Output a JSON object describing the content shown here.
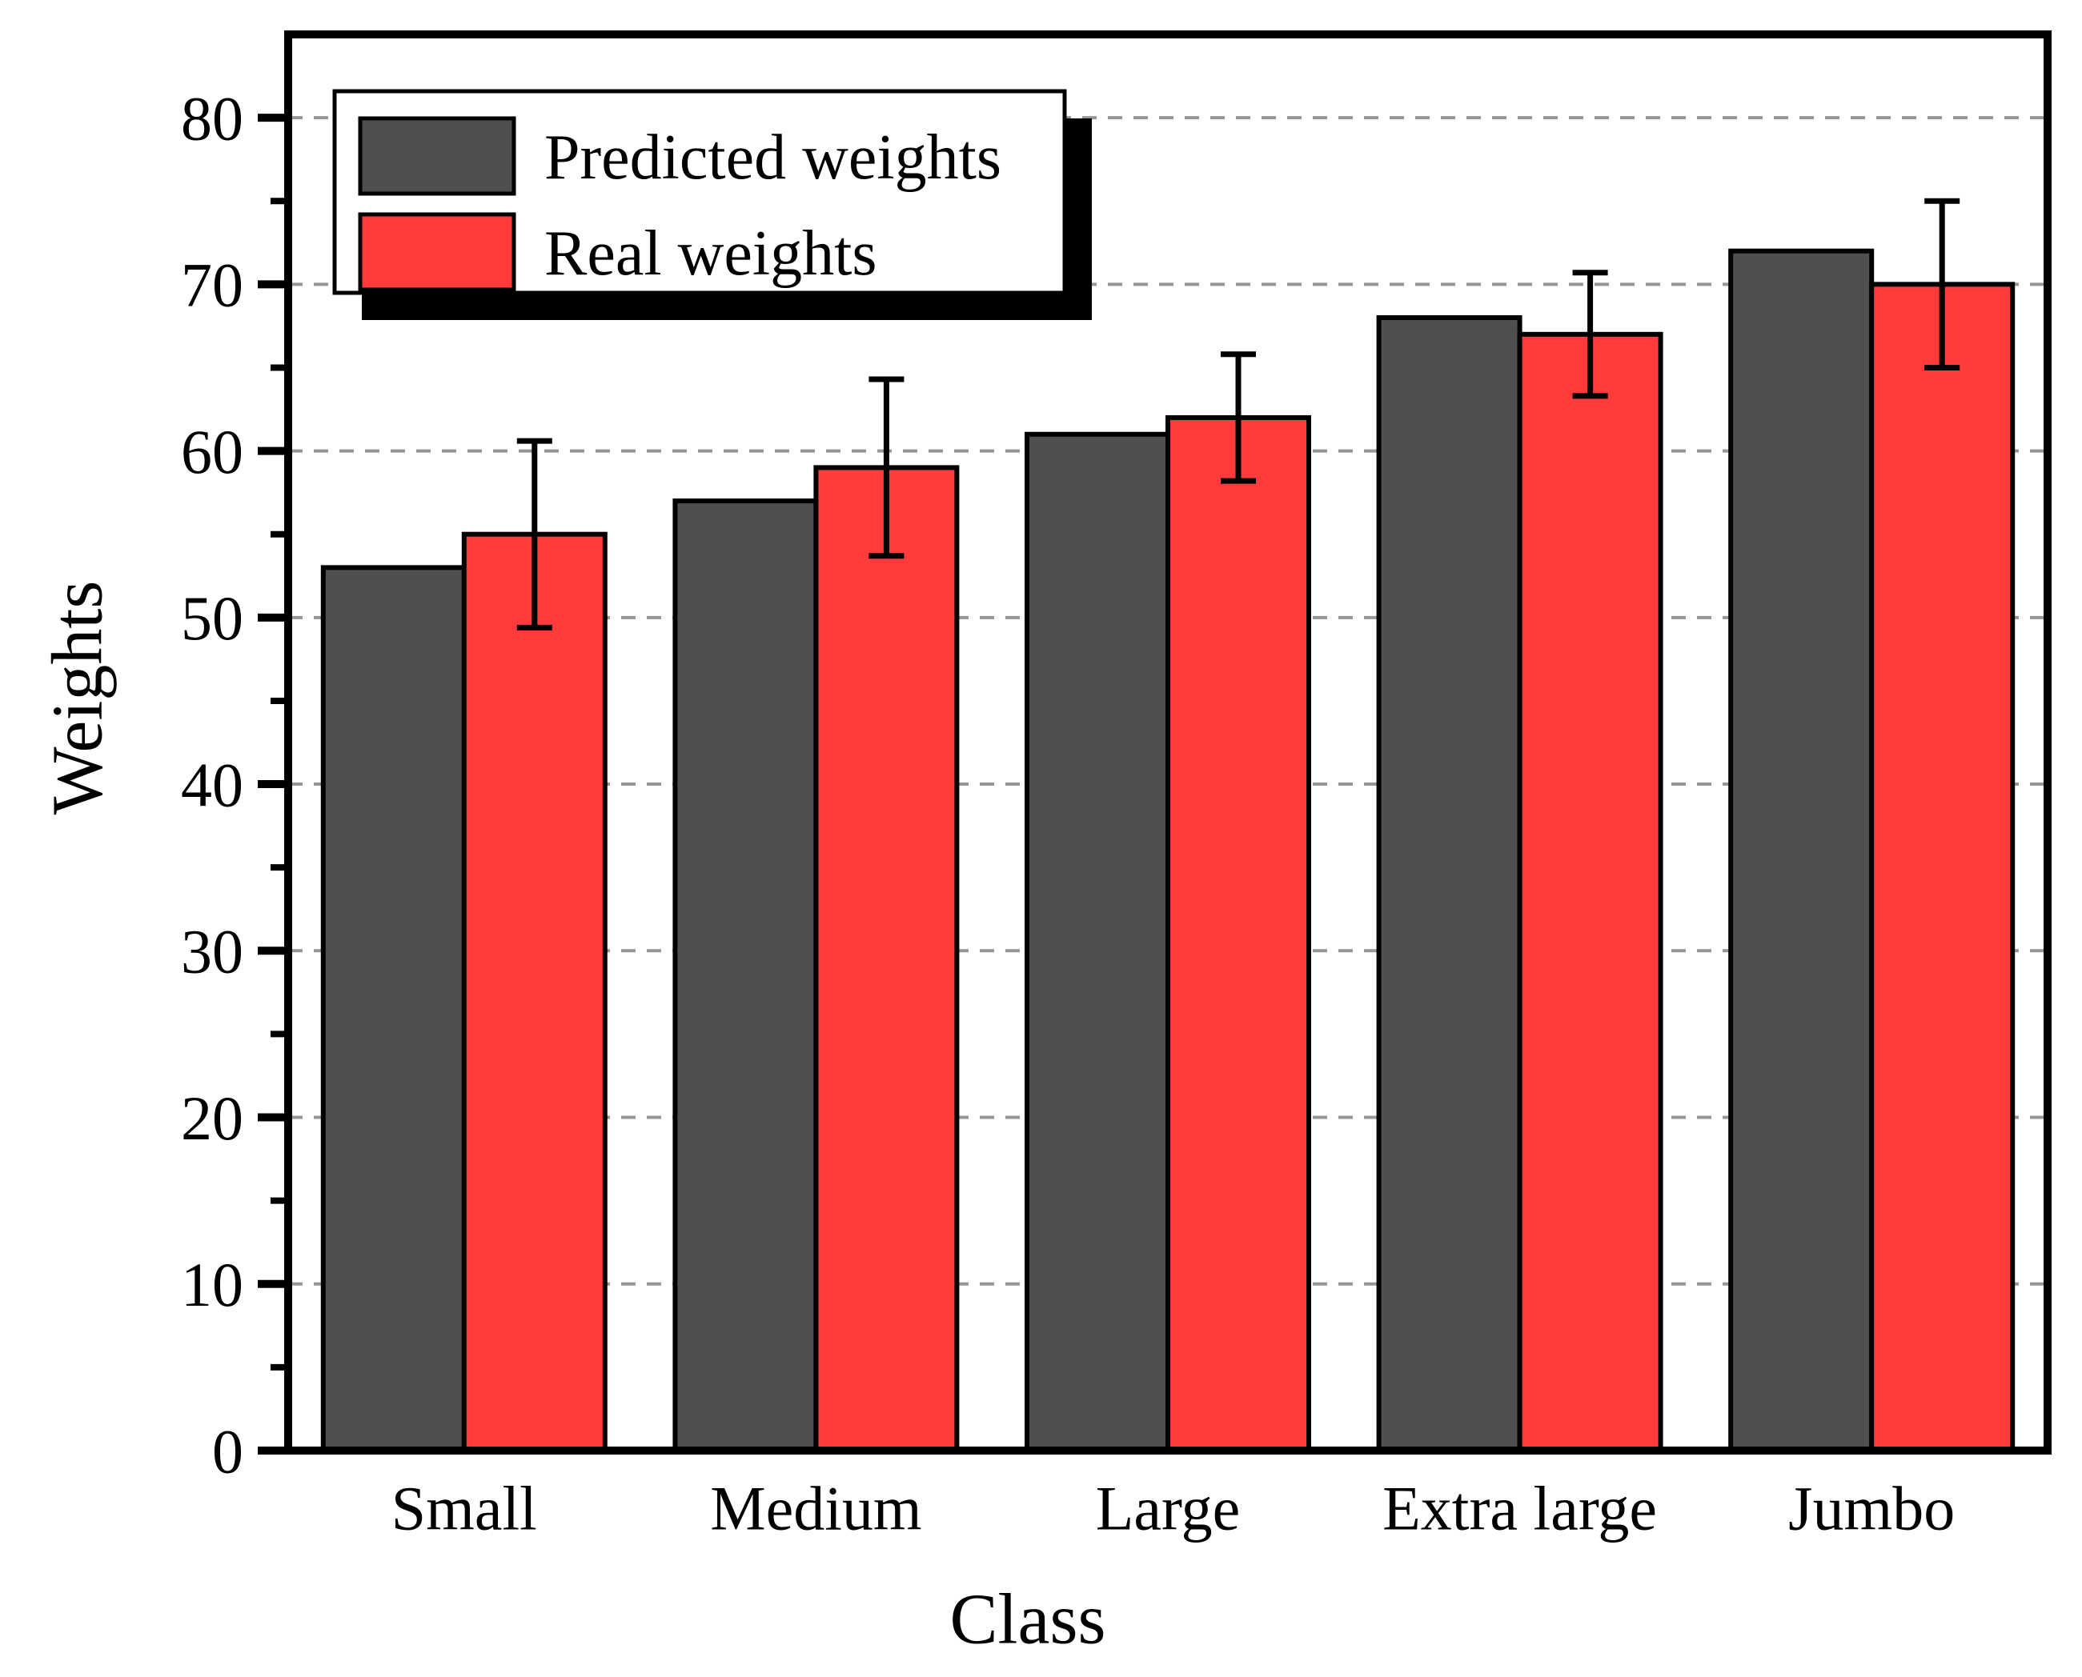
{
  "chart_data": {
    "type": "bar",
    "title": "",
    "categories": [
      "Small",
      "Medium",
      "Large",
      "Extra large",
      "Jumbo"
    ],
    "series": [
      {
        "name": "Predicted weights",
        "color": "#4F4F4F",
        "values": [
          53,
          57,
          61,
          68,
          72
        ]
      },
      {
        "name": "Real weights",
        "color": "#FF3B3B",
        "values": [
          55,
          59,
          62,
          67,
          70
        ],
        "error_bars": [
          5.6,
          5.3,
          3.8,
          3.7,
          5.0
        ]
      }
    ],
    "xlabel": "Class",
    "ylabel": "Weights",
    "ylim": [
      0,
      85
    ],
    "yticks": [
      0,
      10,
      20,
      30,
      40,
      50,
      60,
      70,
      80
    ],
    "ytick_interval": 10,
    "minor_tick_interval": 5,
    "grid": {
      "horizontal": true,
      "style": "dashed",
      "color": "#969696",
      "at": [
        10,
        20,
        30,
        40,
        50,
        60,
        70,
        80
      ]
    },
    "legend": {
      "position": "top-left",
      "items": [
        "Predicted weights",
        "Real weights"
      ],
      "background": "#FFFFFF",
      "border_color": "#000000",
      "shadow_color": "#000000"
    },
    "axis_color": "#000000",
    "error_bar_color": "#000000",
    "background": "#FFFFFF"
  }
}
